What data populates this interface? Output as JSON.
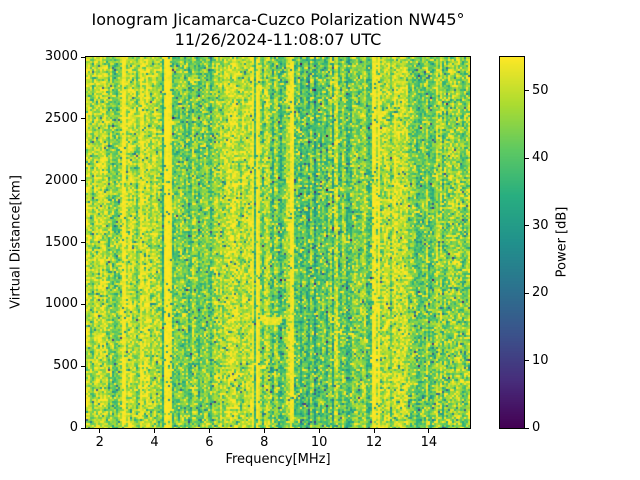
{
  "title": "Ionogram Jicamarca-Cuzco Polarization NW45°",
  "subtitle": "11/26/2024-11:08:07 UTC",
  "chart_data": {
    "type": "heatmap",
    "xlabel": "Frequency[MHz]",
    "ylabel": "Virtual Distance[km]",
    "xlim": [
      1.5,
      15.5
    ],
    "ylim": [
      0,
      3000
    ],
    "xticks": [
      2,
      4,
      6,
      8,
      10,
      12,
      14
    ],
    "yticks": [
      0,
      500,
      1000,
      1500,
      2000,
      2500,
      3000
    ],
    "colorbar": {
      "label": "Power [dB]",
      "min": 0,
      "max": 55,
      "ticks": [
        0,
        10,
        20,
        30,
        40,
        50
      ],
      "colormap": "viridis",
      "position": "right"
    },
    "noise_seed": 42,
    "background_power": {
      "mean": 49,
      "sd": 5
    },
    "bands": [
      {
        "f0": 2.05,
        "f1": 2.8,
        "mean": 45.5,
        "sd": 5
      },
      {
        "f0": 3.0,
        "f1": 3.45,
        "mean": 46.0,
        "sd": 5
      },
      {
        "f0": 4.62,
        "f1": 6.55,
        "mean": 43.0,
        "sd": 5
      },
      {
        "f0": 7.9,
        "f1": 8.95,
        "mean": 44.5,
        "sd": 5
      },
      {
        "f0": 9.1,
        "f1": 11.35,
        "mean": 41.5,
        "sd": 5
      },
      {
        "f0": 11.35,
        "f1": 11.95,
        "mean": 45.0,
        "sd": 5
      },
      {
        "f0": 13.2,
        "f1": 14.35,
        "mean": 42.0,
        "sd": 5
      },
      {
        "f0": 14.35,
        "f1": 15.5,
        "mean": 46.5,
        "sd": 6
      }
    ],
    "bright_lines": [
      {
        "f0": 2.8,
        "f1": 2.98
      },
      {
        "f0": 3.45,
        "f1": 3.53
      },
      {
        "f0": 4.38,
        "f1": 4.62
      },
      {
        "f0": 7.53,
        "f1": 7.66
      },
      {
        "f0": 7.72,
        "f1": 7.84
      },
      {
        "f0": 8.97,
        "f1": 9.08
      },
      {
        "f0": 11.95,
        "f1": 12.07
      },
      {
        "f0": 12.13,
        "f1": 12.25
      }
    ],
    "stripe_power": 54.5,
    "dark_lines": [
      {
        "f0": 4.27,
        "f1": 4.34,
        "power": 34
      },
      {
        "f0": 7.66,
        "f1": 7.72,
        "power": 37
      }
    ],
    "echo_trace": {
      "f0": 7.85,
      "f1": 8.65,
      "fc": 8.3,
      "alt": 870,
      "curve": 160,
      "halfwidth": 28,
      "power": 53
    }
  },
  "colors": {
    "viridis": [
      "#440154",
      "#472d7b",
      "#3b528b",
      "#2c728e",
      "#21918c",
      "#28ae80",
      "#5ec962",
      "#addc30",
      "#fde725"
    ],
    "background": "#ffffff",
    "axis": "#000000"
  }
}
